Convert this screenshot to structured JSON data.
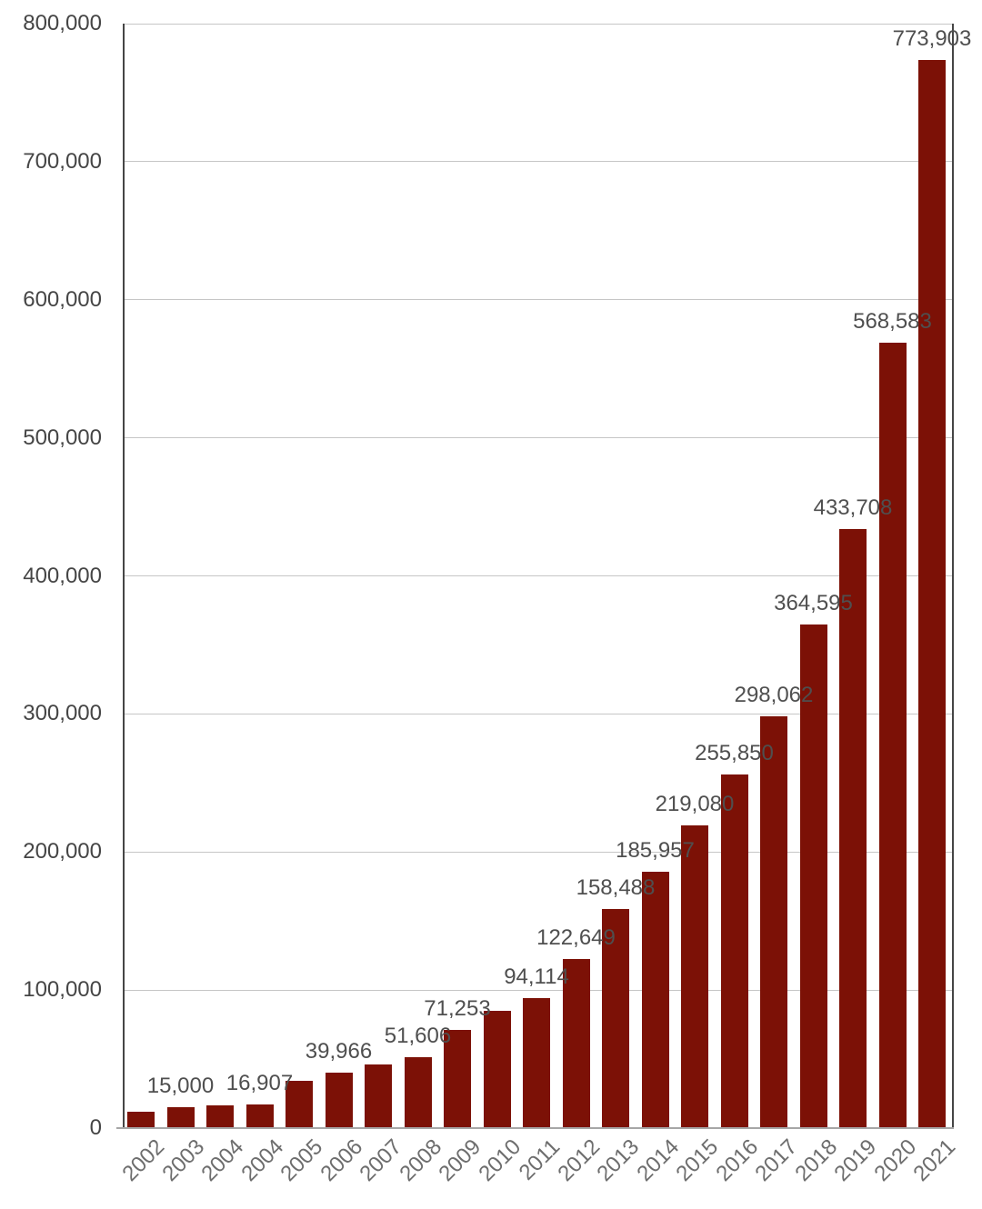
{
  "chart_data": {
    "type": "bar",
    "title": "",
    "xlabel": "",
    "ylabel": "",
    "categories": [
      "2002",
      "2003",
      "2004",
      "2004",
      "2005",
      "2006",
      "2007",
      "2008",
      "2009",
      "2010",
      "2011",
      "2012",
      "2013",
      "2014",
      "2015",
      "2016",
      "2017",
      "2018",
      "2019",
      "2020",
      "2021"
    ],
    "values": [
      12000,
      15000,
      16500,
      16907,
      34000,
      39966,
      46000,
      51606,
      71253,
      85000,
      94114,
      122649,
      158488,
      185957,
      219080,
      255850,
      298062,
      364595,
      433708,
      568583,
      773903
    ],
    "bar_labels": [
      "",
      "15,000",
      "",
      "16,907",
      "",
      "39,966",
      "",
      "51,606",
      "71,253",
      "",
      "94,114",
      "122,649",
      "158,488",
      "185,957",
      "219,080",
      "255,850",
      "298,062",
      "364,595",
      "433,708",
      "568,583",
      "773,903"
    ],
    "ylim": [
      0,
      800000
    ],
    "y_tick_step": 100000,
    "y_tick_labels": [
      "0",
      "100,000",
      "200,000",
      "300,000",
      "400,000",
      "500,000",
      "600,000",
      "700,000",
      "800,000"
    ],
    "grid": "horizontal",
    "legend": "none",
    "bar_color": "#7c1106"
  },
  "style": {
    "background": "#ffffff",
    "gridline_color": "#c6c6c6",
    "side_border_color": "#454545",
    "bottom_axis_color": "#a6a6a6",
    "y_label_color": "#454545",
    "data_label_color": "#4f4f4f",
    "x_label_color": "#6e6e6e"
  }
}
